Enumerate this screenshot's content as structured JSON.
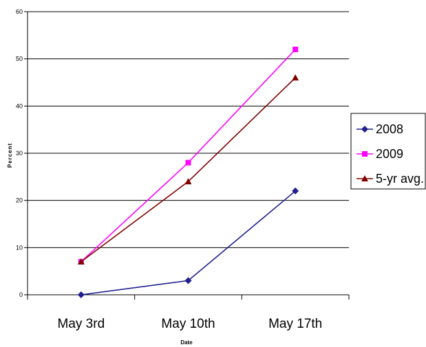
{
  "chart_data": {
    "type": "line",
    "title": "",
    "xlabel": "Date",
    "ylabel": "Percent",
    "categories": [
      "May 3rd",
      "May 10th",
      "May 17th"
    ],
    "ylim": [
      0,
      60
    ],
    "yticks": [
      0,
      10,
      20,
      30,
      40,
      50,
      60
    ],
    "grid": true,
    "legend_position": "right",
    "series": [
      {
        "name": "2008",
        "values": [
          0,
          3,
          22
        ],
        "color": "#1f1f8f",
        "marker": "diamond"
      },
      {
        "name": "2009",
        "values": [
          7,
          28,
          52
        ],
        "color": "#ff00ff",
        "marker": "square"
      },
      {
        "name": "5-yr avg.",
        "values": [
          7,
          24,
          46
        ],
        "color": "#800000",
        "marker": "triangle"
      }
    ]
  }
}
